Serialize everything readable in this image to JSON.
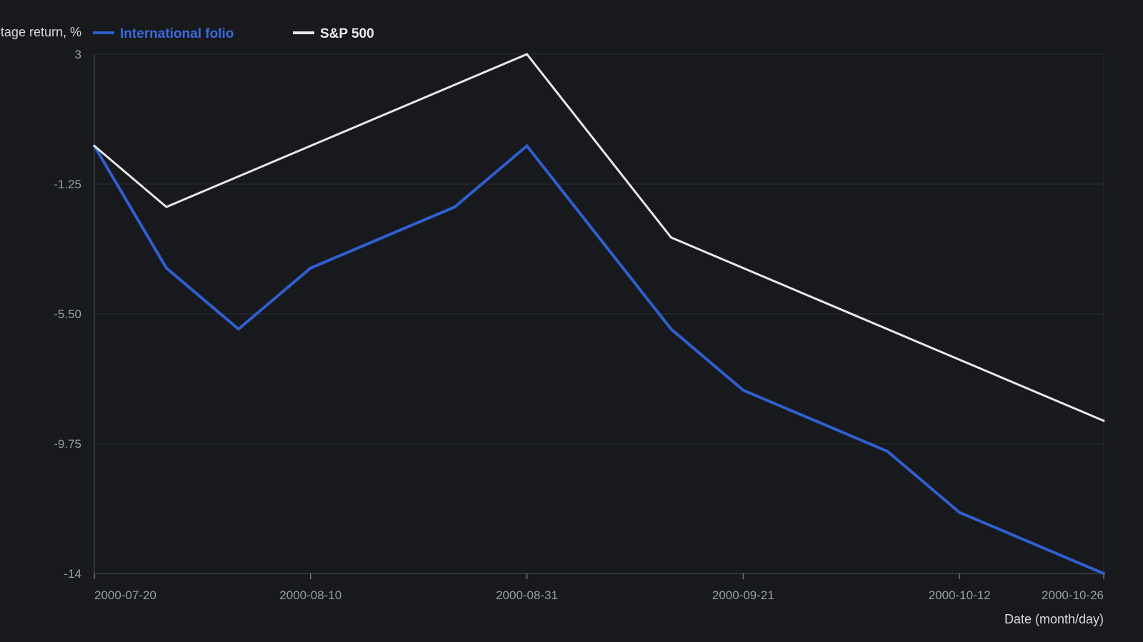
{
  "chart_data": {
    "type": "line",
    "title": "",
    "ylabel": "Percentage return, %",
    "xlabel": "Date (month/day)",
    "ylim": [
      -14,
      3
    ],
    "yticks": [
      3,
      -1.25,
      -5.5,
      -9.75,
      -14
    ],
    "ytick_labels": [
      "3",
      "-1.25",
      "-5.50",
      "-9.75",
      "-14"
    ],
    "xlim": [
      "2000-07-20",
      "2000-10-26"
    ],
    "xticks": [
      "2000-07-20",
      "2000-08-10",
      "2000-08-31",
      "2000-09-21",
      "2000-10-12",
      "2000-10-26"
    ],
    "grid": true,
    "legend_position": "top-left",
    "x": [
      "2000-07-20",
      "2000-07-27",
      "2000-08-03",
      "2000-08-10",
      "2000-08-17",
      "2000-08-24",
      "2000-08-31",
      "2000-09-07",
      "2000-09-14",
      "2000-09-21",
      "2000-09-28",
      "2000-10-05",
      "2000-10-12",
      "2000-10-19",
      "2000-10-26"
    ],
    "series": [
      {
        "name": "International folio",
        "color": "#2f5fd0",
        "values": [
          0,
          -4,
          -6,
          -4,
          null,
          -2,
          0,
          null,
          -6,
          -8,
          null,
          -10,
          -12,
          null,
          -14
        ]
      },
      {
        "name": "S&P 500",
        "color": "#e8e8e8",
        "values": [
          0,
          -2,
          null,
          null,
          null,
          null,
          3,
          null,
          -3,
          null,
          null,
          null,
          -7,
          null,
          -9
        ]
      }
    ]
  }
}
